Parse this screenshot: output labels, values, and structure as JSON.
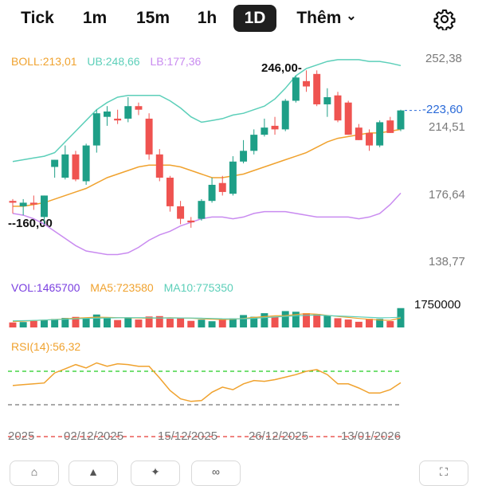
{
  "tabs": [
    {
      "label": "Tick",
      "active": false
    },
    {
      "label": "1m",
      "active": false
    },
    {
      "label": "15m",
      "active": false
    },
    {
      "label": "1h",
      "active": false
    },
    {
      "label": "1D",
      "active": true
    },
    {
      "label": "Thêm",
      "active": false
    }
  ],
  "more_chevron": "⌄",
  "icons": {
    "settings": "gear-icon"
  },
  "boll_legend": {
    "boll": "BOLL:213,01",
    "ub": "UB:248,66",
    "lb": "LB:177,36"
  },
  "vol_legend": {
    "vol": "VOL:1465700",
    "ma5": "MA5:723580",
    "ma10": "MA10:775350"
  },
  "rsi_legend": {
    "rsi": "RSI(14):56,32"
  },
  "price_axis": [
    "252,38",
    "214,51",
    "176,64",
    "138,77"
  ],
  "last_price": "223,60",
  "max_annotation": "246,00",
  "min_annotation": "160,00",
  "volume_axis": "1750000",
  "date_labels": [
    "2025",
    "02/12/2025",
    "15/12/2025",
    "26/12/2025",
    "13/01/2026"
  ],
  "colors": {
    "up": "#1e9f87",
    "down": "#ef5350",
    "boll": "#f0a22e",
    "ub": "#5ccfb9",
    "lb": "#c98bf0",
    "rsi": "#f0a22e",
    "rsi_high": "#22cc22",
    "rsi_low": "#e53935"
  },
  "chart_data": [
    {
      "type": "candlestick",
      "title": "",
      "ylim": [
        138.77,
        252.38
      ],
      "candles": [
        {
          "o": 173,
          "h": 174,
          "l": 166,
          "c": 172
        },
        {
          "o": 170,
          "h": 174,
          "l": 165,
          "c": 172
        },
        {
          "o": 172,
          "h": 176,
          "l": 168,
          "c": 171
        },
        {
          "o": 164,
          "h": 176,
          "l": 160,
          "c": 176
        },
        {
          "o": 192,
          "h": 196,
          "l": 186,
          "c": 196
        },
        {
          "o": 186,
          "h": 204,
          "l": 185,
          "c": 199
        },
        {
          "o": 199,
          "h": 201,
          "l": 184,
          "c": 185
        },
        {
          "o": 184,
          "h": 205,
          "l": 182,
          "c": 204
        },
        {
          "o": 204,
          "h": 224,
          "l": 200,
          "c": 222
        },
        {
          "o": 220,
          "h": 226,
          "l": 215,
          "c": 223
        },
        {
          "o": 219,
          "h": 224,
          "l": 216,
          "c": 218
        },
        {
          "o": 219,
          "h": 231,
          "l": 217,
          "c": 226
        },
        {
          "o": 226,
          "h": 228,
          "l": 221,
          "c": 224
        },
        {
          "o": 219,
          "h": 222,
          "l": 196,
          "c": 199
        },
        {
          "o": 199,
          "h": 202,
          "l": 184,
          "c": 186
        },
        {
          "o": 186,
          "h": 187,
          "l": 167,
          "c": 170
        },
        {
          "o": 170,
          "h": 173,
          "l": 160,
          "c": 163
        },
        {
          "o": 162,
          "h": 164,
          "l": 158,
          "c": 161
        },
        {
          "o": 163,
          "h": 174,
          "l": 162,
          "c": 173
        },
        {
          "o": 173,
          "h": 186,
          "l": 172,
          "c": 182
        },
        {
          "o": 183,
          "h": 187,
          "l": 176,
          "c": 178
        },
        {
          "o": 177,
          "h": 198,
          "l": 176,
          "c": 195
        },
        {
          "o": 195,
          "h": 207,
          "l": 194,
          "c": 201
        },
        {
          "o": 201,
          "h": 213,
          "l": 199,
          "c": 210
        },
        {
          "o": 210,
          "h": 219,
          "l": 209,
          "c": 214
        },
        {
          "o": 215,
          "h": 220,
          "l": 210,
          "c": 213
        },
        {
          "o": 213,
          "h": 230,
          "l": 212,
          "c": 229
        },
        {
          "o": 229,
          "h": 243,
          "l": 228,
          "c": 242
        },
        {
          "o": 240,
          "h": 246,
          "l": 234,
          "c": 237
        },
        {
          "o": 244,
          "h": 246,
          "l": 226,
          "c": 227
        },
        {
          "o": 227,
          "h": 236,
          "l": 220,
          "c": 231
        },
        {
          "o": 232,
          "h": 234,
          "l": 217,
          "c": 218
        },
        {
          "o": 228,
          "h": 229,
          "l": 210,
          "c": 210
        },
        {
          "o": 214,
          "h": 216,
          "l": 207,
          "c": 207
        },
        {
          "o": 211,
          "h": 213,
          "l": 201,
          "c": 204
        },
        {
          "o": 204,
          "h": 218,
          "l": 203,
          "c": 217
        },
        {
          "o": 218,
          "h": 220,
          "l": 211,
          "c": 211
        },
        {
          "o": 213,
          "h": 224,
          "l": 212,
          "c": 223.6
        }
      ],
      "boll": [
        170,
        170,
        171,
        172,
        174,
        176,
        178,
        180,
        183,
        186,
        188,
        190,
        192,
        193,
        193,
        193,
        192,
        190,
        188,
        186,
        186,
        187,
        188,
        190,
        192,
        194,
        196,
        198,
        200,
        203,
        206,
        208,
        209,
        210,
        211,
        211,
        212,
        213.01
      ],
      "ub": [
        195,
        196,
        197,
        198,
        200,
        206,
        212,
        218,
        224,
        228,
        231,
        232,
        232,
        232,
        232,
        229,
        225,
        220,
        217,
        218,
        219,
        221,
        222,
        224,
        226,
        230,
        236,
        243,
        247,
        249,
        251,
        252,
        252,
        252,
        251,
        251,
        250,
        248.66
      ],
      "lb": [
        166,
        165,
        163,
        160,
        156,
        152,
        148,
        145,
        144,
        143,
        143,
        144,
        147,
        151,
        154,
        156,
        159,
        161,
        163,
        164,
        164,
        163,
        164,
        166,
        167,
        167,
        167,
        166,
        165,
        164,
        164,
        164,
        164,
        163,
        164,
        166,
        171,
        177.36
      ]
    },
    {
      "type": "bar",
      "title": "",
      "series": [
        {
          "name": "VOL",
          "values": [
            380000,
            410000,
            500000,
            560000,
            640000,
            720000,
            800000,
            690000,
            980000,
            780000,
            560000,
            720000,
            600000,
            830000,
            860000,
            660000,
            740000,
            500000,
            590000,
            470000,
            630000,
            690000,
            940000,
            810000,
            1080000,
            820000,
            1240000,
            1190000,
            1080000,
            1020000,
            920000,
            700000,
            600000,
            430000,
            660000,
            650000,
            480000,
            1465700
          ]
        }
      ],
      "ma5": [
        450000,
        470000,
        520000,
        560000,
        600000,
        650000,
        700000,
        740000,
        780000,
        760000,
        740000,
        730000,
        710000,
        700000,
        720000,
        740000,
        720000,
        700000,
        660000,
        620000,
        600000,
        620000,
        680000,
        760000,
        820000,
        880000,
        900000,
        980000,
        1050000,
        1000000,
        920000,
        840000,
        760000,
        680000,
        620000,
        560000,
        540000,
        723580
      ],
      "ma10": [
        500000,
        510000,
        530000,
        560000,
        590000,
        620000,
        650000,
        680000,
        700000,
        720000,
        730000,
        740000,
        740000,
        730000,
        720000,
        720000,
        720000,
        710000,
        700000,
        680000,
        660000,
        650000,
        660000,
        690000,
        740000,
        790000,
        840000,
        880000,
        920000,
        940000,
        900000,
        870000,
        840000,
        800000,
        760000,
        730000,
        740000,
        775350
      ],
      "ylim": [
        0,
        1750000
      ]
    },
    {
      "type": "line",
      "title": "",
      "name": "RSI(14)",
      "ylim": [
        0,
        100
      ],
      "reference_lines": [
        70,
        30
      ],
      "values": [
        53,
        54,
        55,
        56,
        68,
        73,
        78,
        74,
        80,
        76,
        79,
        78,
        76,
        76,
        62,
        47,
        37,
        34,
        35,
        45,
        51,
        48,
        55,
        59,
        58,
        60,
        63,
        66,
        70,
        72,
        66,
        55,
        55,
        50,
        44,
        44,
        48,
        56.32
      ]
    }
  ]
}
